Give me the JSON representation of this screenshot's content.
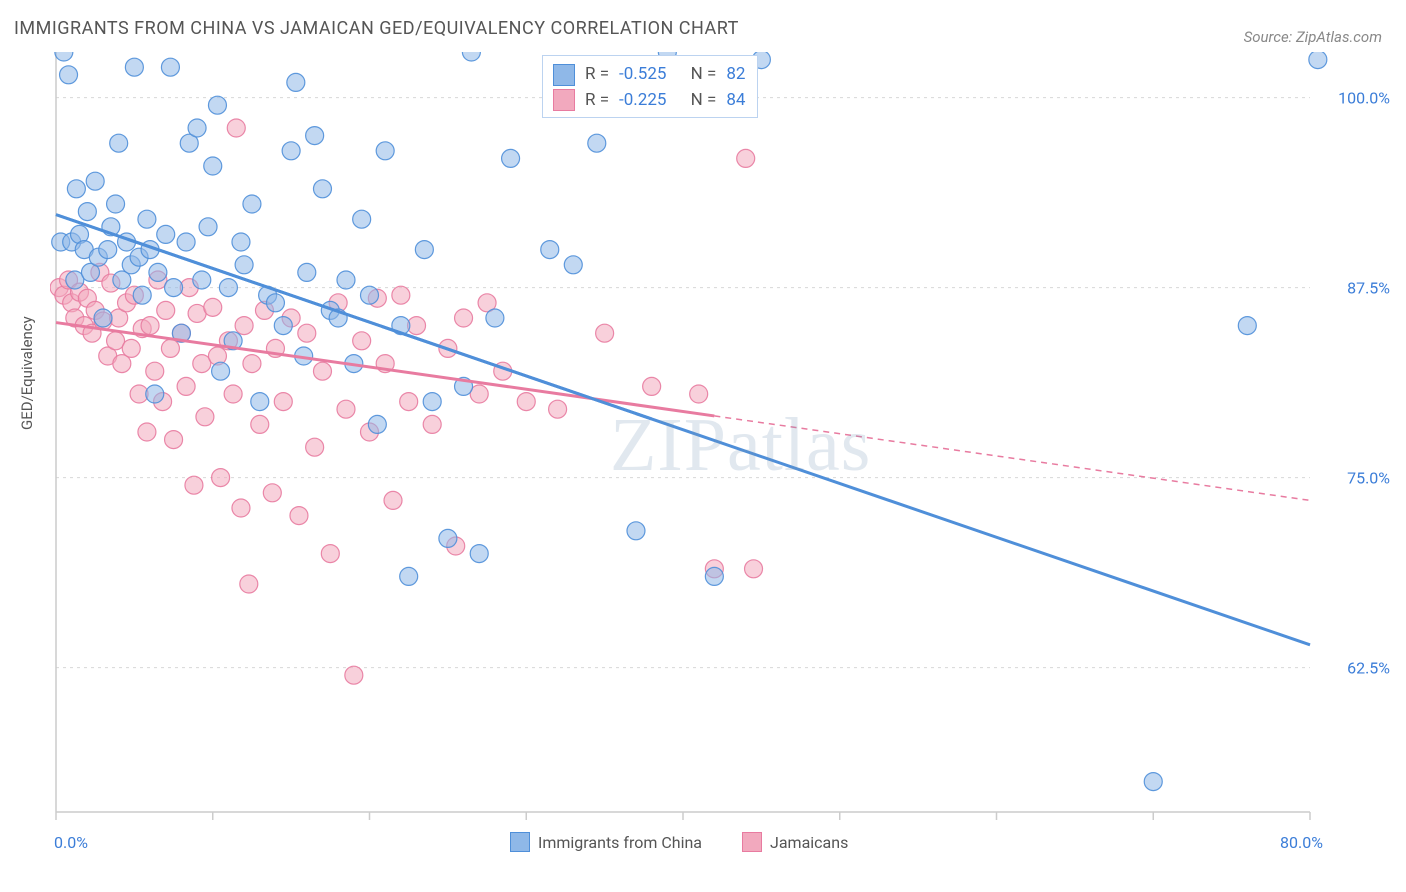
{
  "title": "IMMIGRANTS FROM CHINA VS JAMAICAN GED/EQUIVALENCY CORRELATION CHART",
  "source": "Source: ZipAtlas.com",
  "ylabel": "GED/Equivalency",
  "watermark": "ZIPatlas",
  "chart": {
    "type": "scatter",
    "xlim": [
      0,
      80
    ],
    "ylim": [
      53,
      103
    ],
    "xtick_positions": [
      0,
      10,
      20,
      30,
      40,
      50,
      60,
      70,
      80
    ],
    "xtick_labels": {
      "0": "0.0%",
      "80": "80.0%"
    },
    "ytick_positions": [
      62.5,
      75.0,
      87.5,
      100.0
    ],
    "ytick_labels": [
      "62.5%",
      "75.0%",
      "87.5%",
      "100.0%"
    ],
    "grid_color": "#d8d8d8",
    "axis_color": "#cccccc",
    "background_color": "#ffffff",
    "marker_radius": 9,
    "marker_opacity": 0.55,
    "marker_stroke_opacity": 0.9,
    "line_width_solid": 3,
    "line_width_dash": 1.5,
    "dash_pattern": "6 5"
  },
  "correlation_legend": {
    "rows": [
      {
        "swatch": "#8fb8e8",
        "r_label": "R =",
        "r": "-0.525",
        "n_label": "N =",
        "n": "82"
      },
      {
        "swatch": "#f2a9be",
        "r_label": "R =",
        "r": "-0.225",
        "n_label": "N =",
        "n": "84"
      }
    ]
  },
  "series_legend": [
    {
      "swatch": "#8fb8e8",
      "label": "Immigrants from China"
    },
    {
      "swatch": "#f2a9be",
      "label": "Jamaicans"
    }
  ],
  "series": [
    {
      "name": "Immigrants from China",
      "fill": "#8fb8e8",
      "stroke": "#4f8fd9",
      "trend": {
        "x1": 0,
        "y1": 92.3,
        "x2": 80,
        "y2": 64.0,
        "solid_until_x": 38
      },
      "points": [
        [
          0.3,
          90.5
        ],
        [
          0.5,
          103
        ],
        [
          0.8,
          101.5
        ],
        [
          1.0,
          90.5
        ],
        [
          1.2,
          88
        ],
        [
          1.3,
          94
        ],
        [
          1.5,
          91
        ],
        [
          1.8,
          90
        ],
        [
          2.0,
          92.5
        ],
        [
          2.2,
          88.5
        ],
        [
          2.5,
          94.5
        ],
        [
          2.7,
          89.5
        ],
        [
          3.0,
          85.5
        ],
        [
          3.3,
          90
        ],
        [
          3.5,
          91.5
        ],
        [
          3.8,
          93
        ],
        [
          4.0,
          97
        ],
        [
          4.2,
          88
        ],
        [
          4.5,
          90.5
        ],
        [
          4.8,
          89
        ],
        [
          5.0,
          102
        ],
        [
          5.3,
          89.5
        ],
        [
          5.5,
          87
        ],
        [
          5.8,
          92
        ],
        [
          6.0,
          90
        ],
        [
          6.3,
          80.5
        ],
        [
          6.5,
          88.5
        ],
        [
          7.0,
          91
        ],
        [
          7.3,
          102
        ],
        [
          7.5,
          87.5
        ],
        [
          8.0,
          84.5
        ],
        [
          8.3,
          90.5
        ],
        [
          8.5,
          97
        ],
        [
          9.0,
          98
        ],
        [
          9.3,
          88
        ],
        [
          9.7,
          91.5
        ],
        [
          10.0,
          95.5
        ],
        [
          10.3,
          99.5
        ],
        [
          10.5,
          82
        ],
        [
          11.0,
          87.5
        ],
        [
          11.3,
          84
        ],
        [
          11.8,
          90.5
        ],
        [
          12.0,
          89
        ],
        [
          12.5,
          93
        ],
        [
          13.0,
          80
        ],
        [
          13.5,
          87
        ],
        [
          14.0,
          86.5
        ],
        [
          14.5,
          85
        ],
        [
          15.0,
          96.5
        ],
        [
          15.3,
          101
        ],
        [
          15.8,
          83
        ],
        [
          16.0,
          88.5
        ],
        [
          16.5,
          97.5
        ],
        [
          17.0,
          94
        ],
        [
          17.5,
          86
        ],
        [
          18.0,
          85.5
        ],
        [
          18.5,
          88
        ],
        [
          19.0,
          82.5
        ],
        [
          19.5,
          92
        ],
        [
          20.0,
          87
        ],
        [
          20.5,
          78.5
        ],
        [
          21.0,
          96.5
        ],
        [
          22.0,
          85
        ],
        [
          22.5,
          68.5
        ],
        [
          23.5,
          90
        ],
        [
          24.0,
          80
        ],
        [
          25.0,
          71
        ],
        [
          26.0,
          81
        ],
        [
          26.5,
          103
        ],
        [
          27.0,
          70
        ],
        [
          28.0,
          85.5
        ],
        [
          29.0,
          96
        ],
        [
          31.5,
          90
        ],
        [
          33.0,
          89
        ],
        [
          34.5,
          97
        ],
        [
          37.0,
          71.5
        ],
        [
          39.0,
          103
        ],
        [
          42.0,
          68.5
        ],
        [
          45.0,
          102.5
        ],
        [
          70.0,
          55
        ],
        [
          76.0,
          85
        ],
        [
          80.5,
          102.5
        ]
      ]
    },
    {
      "name": "Jamaicans",
      "fill": "#f2a9be",
      "stroke": "#e87ba0",
      "trend": {
        "x1": 0,
        "y1": 85.2,
        "x2": 80,
        "y2": 73.5,
        "solid_until_x": 42
      },
      "points": [
        [
          0.2,
          87.5
        ],
        [
          0.5,
          87
        ],
        [
          0.8,
          88
        ],
        [
          1.0,
          86.5
        ],
        [
          1.2,
          85.5
        ],
        [
          1.5,
          87.2
        ],
        [
          1.8,
          85
        ],
        [
          2.0,
          86.8
        ],
        [
          2.3,
          84.5
        ],
        [
          2.5,
          86
        ],
        [
          2.8,
          88.5
        ],
        [
          3.0,
          85.3
        ],
        [
          3.3,
          83
        ],
        [
          3.5,
          87.8
        ],
        [
          3.8,
          84
        ],
        [
          4.0,
          85.5
        ],
        [
          4.2,
          82.5
        ],
        [
          4.5,
          86.5
        ],
        [
          4.8,
          83.5
        ],
        [
          5.0,
          87
        ],
        [
          5.3,
          80.5
        ],
        [
          5.5,
          84.8
        ],
        [
          5.8,
          78
        ],
        [
          6.0,
          85
        ],
        [
          6.3,
          82
        ],
        [
          6.5,
          88
        ],
        [
          6.8,
          80
        ],
        [
          7.0,
          86
        ],
        [
          7.3,
          83.5
        ],
        [
          7.5,
          77.5
        ],
        [
          8.0,
          84.5
        ],
        [
          8.3,
          81
        ],
        [
          8.5,
          87.5
        ],
        [
          8.8,
          74.5
        ],
        [
          9.0,
          85.8
        ],
        [
          9.3,
          82.5
        ],
        [
          9.5,
          79
        ],
        [
          10.0,
          86.2
        ],
        [
          10.3,
          83
        ],
        [
          10.5,
          75
        ],
        [
          11.0,
          84
        ],
        [
          11.3,
          80.5
        ],
        [
          11.5,
          98
        ],
        [
          11.8,
          73
        ],
        [
          12.0,
          85
        ],
        [
          12.3,
          68
        ],
        [
          12.5,
          82.5
        ],
        [
          13.0,
          78.5
        ],
        [
          13.3,
          86
        ],
        [
          13.8,
          74
        ],
        [
          14.0,
          83.5
        ],
        [
          14.5,
          80
        ],
        [
          15.0,
          85.5
        ],
        [
          15.5,
          72.5
        ],
        [
          16.0,
          84.5
        ],
        [
          16.5,
          77
        ],
        [
          17.0,
          82
        ],
        [
          17.5,
          70
        ],
        [
          18.0,
          86.5
        ],
        [
          18.5,
          79.5
        ],
        [
          19.0,
          62
        ],
        [
          19.5,
          84
        ],
        [
          20.0,
          78
        ],
        [
          20.5,
          86.8
        ],
        [
          21.0,
          82.5
        ],
        [
          21.5,
          73.5
        ],
        [
          22.0,
          87
        ],
        [
          22.5,
          80
        ],
        [
          23.0,
          85
        ],
        [
          24.0,
          78.5
        ],
        [
          25.0,
          83.5
        ],
        [
          25.5,
          70.5
        ],
        [
          26.0,
          85.5
        ],
        [
          27.0,
          80.5
        ],
        [
          27.5,
          86.5
        ],
        [
          28.5,
          82
        ],
        [
          30.0,
          80
        ],
        [
          32.0,
          79.5
        ],
        [
          35.0,
          84.5
        ],
        [
          38.0,
          81
        ],
        [
          41.0,
          80.5
        ],
        [
          42.0,
          69
        ],
        [
          44.0,
          96
        ],
        [
          44.5,
          69.0
        ]
      ]
    }
  ]
}
